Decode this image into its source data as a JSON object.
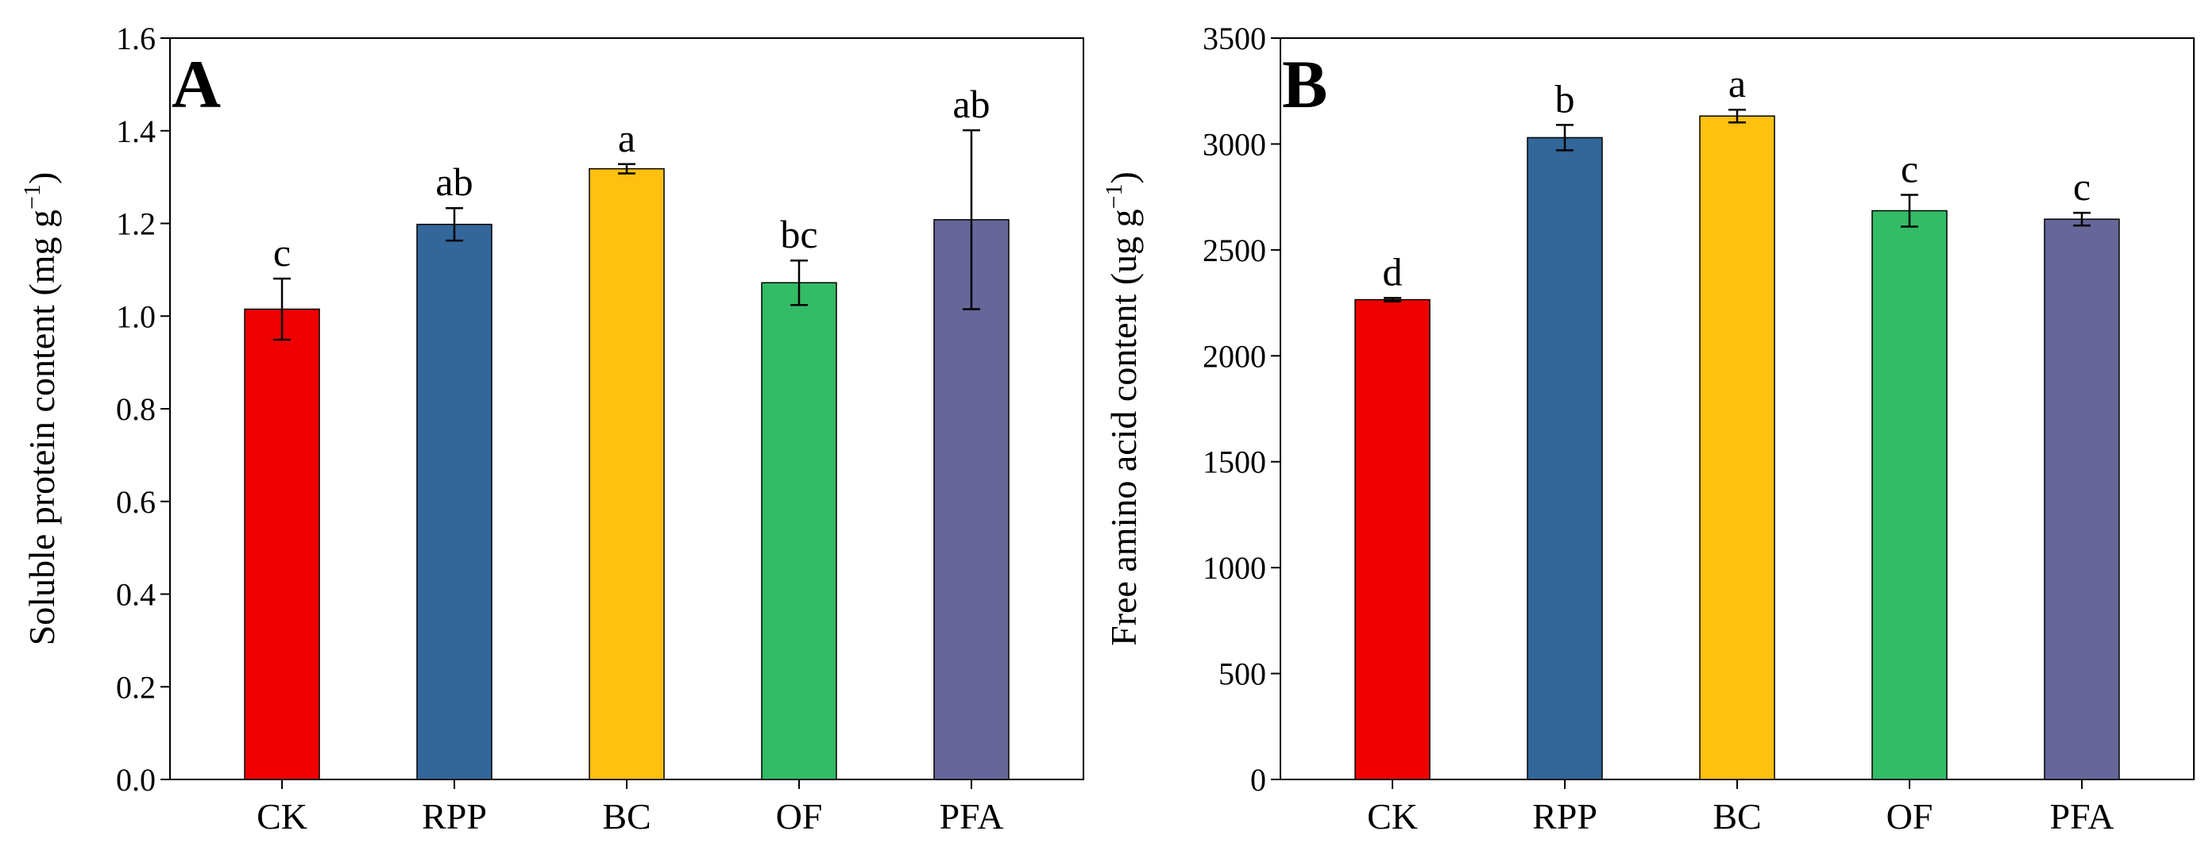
{
  "chart_data": [
    {
      "type": "bar",
      "panel_label": "A",
      "ylabel_text": "Soluble protein content (mg g",
      "ylabel_sup": "−1",
      "ylabel_close": ")",
      "ylim": [
        0,
        1.6
      ],
      "yticks": [
        0.0,
        0.2,
        0.4,
        0.6,
        0.8,
        1.0,
        1.2,
        1.4,
        1.6
      ],
      "ytick_labels": [
        "0.0",
        "0.2",
        "0.4",
        "0.6",
        "0.8",
        "1.0",
        "1.2",
        "1.4",
        "1.6"
      ],
      "categories": [
        "CK",
        "RPP",
        "BC",
        "OF",
        "PFA"
      ],
      "values": [
        1.015,
        1.198,
        1.318,
        1.072,
        1.208
      ],
      "errors": [
        0.066,
        0.035,
        0.01,
        0.048,
        0.193
      ],
      "sig_letters": [
        "c",
        "ab",
        "a",
        "bc",
        "ab"
      ],
      "colors": [
        "#EE0000",
        "#336699",
        "#FFC010",
        "#33BB66",
        "#666699"
      ]
    },
    {
      "type": "bar",
      "panel_label": "B",
      "ylabel_text": "Free amino acid content (ug g",
      "ylabel_sup": "−1",
      "ylabel_close": ")",
      "ylim": [
        0,
        3500
      ],
      "yticks": [
        0,
        500,
        1000,
        1500,
        2000,
        2500,
        3000,
        3500
      ],
      "ytick_labels": [
        "0",
        "500",
        "1000",
        "1500",
        "2000",
        "2500",
        "3000",
        "3500"
      ],
      "categories": [
        "CK",
        "RPP",
        "BC",
        "OF",
        "PFA"
      ],
      "values": [
        2265,
        3030,
        3132,
        2685,
        2645
      ],
      "errors": [
        8,
        60,
        30,
        75,
        30
      ],
      "sig_letters": [
        "d",
        "b",
        "a",
        "c",
        "c"
      ],
      "colors": [
        "#EE0000",
        "#336699",
        "#FFC010",
        "#33BB66",
        "#666699"
      ]
    }
  ]
}
